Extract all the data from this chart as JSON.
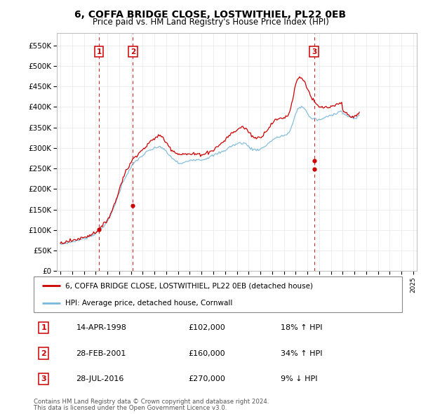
{
  "title": "6, COFFA BRIDGE CLOSE, LOSTWITHIEL, PL22 0EB",
  "subtitle": "Price paid vs. HM Land Registry's House Price Index (HPI)",
  "legend_line1": "6, COFFA BRIDGE CLOSE, LOSTWITHIEL, PL22 0EB (detached house)",
  "legend_line2": "HPI: Average price, detached house, Cornwall",
  "footer1": "Contains HM Land Registry data © Crown copyright and database right 2024.",
  "footer2": "This data is licensed under the Open Government Licence v3.0.",
  "transactions": [
    {
      "num": 1,
      "date": "14-APR-1998",
      "price": 102000,
      "pct": "18%",
      "dir": "↑",
      "x": 1998.28,
      "hpi_at": 86000
    },
    {
      "num": 2,
      "date": "28-FEB-2001",
      "price": 160000,
      "pct": "34%",
      "dir": "↑",
      "x": 2001.16,
      "hpi_at": 119000
    },
    {
      "num": 3,
      "date": "28-JUL-2016",
      "price": 270000,
      "pct": "9%",
      "dir": "↓",
      "x": 2016.57,
      "hpi_at": 248000
    }
  ],
  "hpi_color": "#7ab8d9",
  "price_color": "#cc0000",
  "dashed_vline_color": "#cc0000",
  "ylim": [
    0,
    580000
  ],
  "xlim": [
    1994.7,
    2025.3
  ],
  "yticks": [
    0,
    50000,
    100000,
    150000,
    200000,
    250000,
    300000,
    350000,
    400000,
    450000,
    500000,
    550000
  ],
  "ytick_labels": [
    "£0",
    "£50K",
    "£100K",
    "£150K",
    "£200K",
    "£250K",
    "£300K",
    "£350K",
    "£400K",
    "£450K",
    "£500K",
    "£550K"
  ],
  "xticks": [
    1995,
    1996,
    1997,
    1998,
    1999,
    2000,
    2001,
    2002,
    2003,
    2004,
    2005,
    2006,
    2007,
    2008,
    2009,
    2010,
    2011,
    2012,
    2013,
    2014,
    2015,
    2016,
    2017,
    2018,
    2019,
    2020,
    2021,
    2022,
    2023,
    2024,
    2025
  ],
  "hpi_monthly": [
    65000,
    65800,
    66500,
    67000,
    67500,
    68000,
    68500,
    69000,
    69500,
    70000,
    70500,
    71000,
    71500,
    72000,
    72800,
    73500,
    74000,
    74800,
    75500,
    76000,
    76800,
    77500,
    78000,
    78800,
    79500,
    80200,
    81000,
    82000,
    83000,
    84000,
    85000,
    86000,
    87000,
    88000,
    89500,
    91000,
    92500,
    94000,
    96000,
    98000,
    100000,
    102000,
    104000,
    107000,
    110000,
    113000,
    116000,
    119000,
    122000,
    126000,
    130000,
    135000,
    140000,
    146000,
    152000,
    158000,
    164000,
    170000,
    177000,
    184000,
    191000,
    198000,
    205000,
    212000,
    218000,
    223000,
    228000,
    232000,
    236000,
    240000,
    244000,
    248000,
    252000,
    256000,
    260000,
    263000,
    266000,
    268000,
    270000,
    272000,
    274000,
    276000,
    278000,
    280000,
    282000,
    284000,
    286000,
    288000,
    290000,
    292000,
    293000,
    294000,
    295000,
    296000,
    297000,
    298000,
    299000,
    300000,
    301000,
    302000,
    303000,
    304000,
    303000,
    302000,
    300000,
    298000,
    296000,
    294000,
    291000,
    288000,
    285000,
    282000,
    280000,
    278000,
    276000,
    274000,
    272000,
    270000,
    268000,
    266000,
    264000,
    263000,
    262000,
    262000,
    262000,
    263000,
    264000,
    265000,
    266000,
    267000,
    268000,
    269000,
    270000,
    271000,
    272000,
    272000,
    272000,
    272000,
    272000,
    272000,
    272000,
    272000,
    272000,
    272000,
    272000,
    272000,
    272000,
    273000,
    274000,
    275000,
    276000,
    277000,
    278000,
    279000,
    280000,
    281000,
    282000,
    283000,
    284000,
    285000,
    286000,
    287000,
    288000,
    289000,
    290000,
    291000,
    292000,
    293000,
    294000,
    296000,
    298000,
    300000,
    302000,
    303000,
    304000,
    305000,
    306000,
    307000,
    308000,
    309000,
    310000,
    311000,
    312000,
    312000,
    312000,
    312000,
    312000,
    312000,
    312000,
    310000,
    308000,
    306000,
    304000,
    302000,
    300000,
    298000,
    297000,
    296000,
    296000,
    296000,
    296000,
    296000,
    296000,
    297000,
    298000,
    299000,
    300000,
    301000,
    303000,
    305000,
    307000,
    309000,
    311000,
    313000,
    315000,
    317000,
    319000,
    321000,
    322000,
    323000,
    324000,
    325000,
    326000,
    327000,
    328000,
    329000,
    330000,
    330000,
    330000,
    331000,
    332000,
    333000,
    335000,
    337000,
    340000,
    345000,
    352000,
    360000,
    368000,
    376000,
    384000,
    390000,
    394000,
    396000,
    398000,
    399000,
    400000,
    400000,
    399000,
    397000,
    394000,
    390000,
    385000,
    380000,
    376000,
    374000,
    373000,
    372000,
    372000,
    372000,
    371000,
    370000,
    369000,
    368000,
    368000,
    369000,
    370000,
    371000,
    372000,
    373000,
    374000,
    375000,
    376000,
    377000,
    378000,
    379000,
    380000,
    381000,
    382000,
    383000,
    384000,
    385000,
    386000,
    387000,
    388000,
    389000,
    390000,
    391000,
    385000,
    383000,
    381000,
    380000,
    379000,
    378000,
    377000,
    376000,
    375000,
    374000,
    373000,
    372000,
    372000,
    373000,
    374000,
    376000,
    378000,
    380000
  ],
  "pp_monthly": [
    68000,
    68800,
    69500,
    70000,
    70500,
    71000,
    71500,
    72000,
    72500,
    73000,
    73500,
    74000,
    74500,
    75000,
    75800,
    76500,
    77000,
    77800,
    78500,
    79000,
    79800,
    80500,
    81000,
    81800,
    82500,
    83200,
    84000,
    85000,
    86000,
    87000,
    88000,
    89000,
    90000,
    91000,
    92500,
    94000,
    95500,
    97000,
    99000,
    101000,
    103000,
    105000,
    107000,
    110000,
    113000,
    116000,
    119000,
    122000,
    125500,
    130000,
    134000,
    139000,
    144000,
    150000,
    156000,
    162000,
    168000,
    175000,
    182000,
    190000,
    198000,
    206000,
    214000,
    221000,
    228000,
    234000,
    239000,
    244000,
    248000,
    252000,
    256000,
    260000,
    264000,
    268000,
    273000,
    276000,
    279000,
    282000,
    284000,
    286000,
    288000,
    290000,
    292000,
    294000,
    296000,
    298000,
    300000,
    303000,
    306000,
    309000,
    311000,
    313000,
    315000,
    317000,
    319000,
    321000,
    323000,
    325000,
    327000,
    329000,
    330000,
    331000,
    330000,
    328000,
    326000,
    323000,
    320000,
    317000,
    314000,
    310000,
    307000,
    304000,
    301000,
    298000,
    296000,
    294000,
    292000,
    290000,
    289000,
    288000,
    287000,
    286000,
    285000,
    285000,
    285000,
    285000,
    285000,
    285000,
    285000,
    285000,
    285000,
    285000,
    285000,
    285000,
    285000,
    285000,
    285000,
    285000,
    285000,
    285000,
    285000,
    285000,
    285000,
    285000,
    285000,
    285000,
    285000,
    286000,
    287000,
    288000,
    289000,
    290000,
    291000,
    292000,
    293000,
    294000,
    295000,
    297000,
    299000,
    301000,
    303000,
    305000,
    307000,
    309000,
    311000,
    313000,
    315000,
    317000,
    319000,
    322000,
    325000,
    328000,
    330000,
    332000,
    334000,
    336000,
    337000,
    338000,
    340000,
    342000,
    344000,
    346000,
    348000,
    349000,
    350000,
    351000,
    351000,
    350000,
    349000,
    347000,
    345000,
    343000,
    340000,
    337000,
    334000,
    331000,
    329000,
    327000,
    326000,
    325000,
    325000,
    325000,
    325000,
    326000,
    327000,
    329000,
    331000,
    333000,
    336000,
    339000,
    342000,
    345000,
    348000,
    351000,
    354000,
    357000,
    360000,
    363000,
    365000,
    367000,
    368000,
    369000,
    370000,
    371000,
    372000,
    373000,
    374000,
    374000,
    374000,
    375000,
    376000,
    377000,
    380000,
    384000,
    390000,
    398000,
    408000,
    420000,
    433000,
    445000,
    455000,
    462000,
    467000,
    470000,
    472000,
    472000,
    471000,
    469000,
    466000,
    462000,
    457000,
    452000,
    446000,
    440000,
    434000,
    429000,
    424000,
    420000,
    416000,
    412000,
    409000,
    406000,
    404000,
    402000,
    400000,
    399000,
    399000,
    399000,
    399000,
    399000,
    399000,
    399000,
    399000,
    399000,
    399000,
    399000,
    399000,
    400000,
    401000,
    402000,
    403000,
    404000,
    405000,
    406000,
    407000,
    408000,
    409000,
    410000,
    395000,
    390000,
    387000,
    385000,
    383000,
    382000,
    381000,
    380000,
    379000,
    378000,
    377000,
    376000,
    376000,
    377000,
    378000,
    380000,
    382000,
    385000
  ]
}
